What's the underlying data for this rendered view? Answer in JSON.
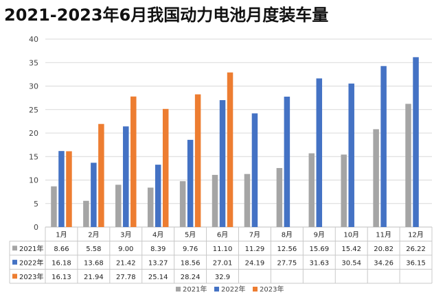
{
  "page_title": "2021-2023年6月我国动力电池月度装车量",
  "chart_data": {
    "type": "bar",
    "title": "2021-2023年6月我国动力电池月度装车量",
    "categories": [
      "1月",
      "2月",
      "3月",
      "4月",
      "5月",
      "6月",
      "7月",
      "8月",
      "9月",
      "10月",
      "11月",
      "12月"
    ],
    "series": [
      {
        "name": "2021年",
        "color": "#A5A5A5",
        "values": [
          8.66,
          5.58,
          9.0,
          8.39,
          9.76,
          11.1,
          11.29,
          12.56,
          15.69,
          15.42,
          20.82,
          26.22
        ],
        "labels": [
          "8.66",
          "5.58",
          "9.00",
          "8.39",
          "9.76",
          "11.10",
          "11.29",
          "12.56",
          "15.69",
          "15.42",
          "20.82",
          "26.22"
        ]
      },
      {
        "name": "2022年",
        "color": "#4472C4",
        "values": [
          16.18,
          13.68,
          21.42,
          13.27,
          18.56,
          27.01,
          24.19,
          27.75,
          31.63,
          30.54,
          34.26,
          36.15
        ],
        "labels": [
          "16.18",
          "13.68",
          "21.42",
          "13.27",
          "18.56",
          "27.01",
          "24.19",
          "27.75",
          "31.63",
          "30.54",
          "34.26",
          "36.15"
        ]
      },
      {
        "name": "2023年",
        "color": "#ED7D31",
        "values": [
          16.13,
          21.94,
          27.78,
          25.14,
          28.24,
          32.9,
          null,
          null,
          null,
          null,
          null,
          null
        ],
        "labels": [
          "16.13",
          "21.94",
          "27.78",
          "25.14",
          "28.24",
          "32.9",
          "",
          "",
          "",
          "",
          "",
          ""
        ]
      }
    ],
    "ylim": [
      0,
      40
    ],
    "yticks": [
      0,
      5,
      10,
      15,
      20,
      25,
      30,
      35,
      40
    ],
    "grid": true,
    "legend_position": "bottom",
    "data_table": true
  }
}
